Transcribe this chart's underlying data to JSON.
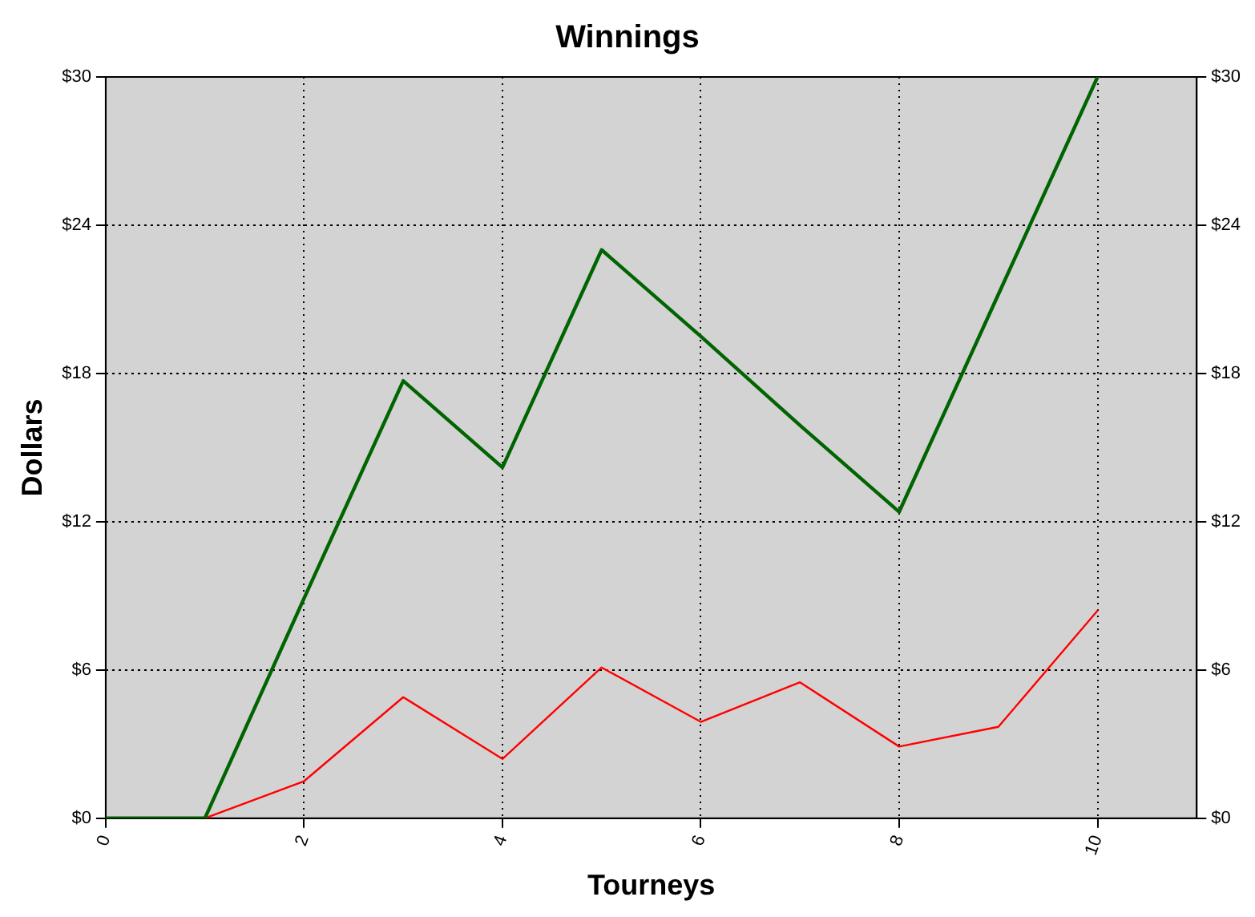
{
  "chart_data": {
    "type": "line",
    "title": "Winnings",
    "xlabel": "Tourneys",
    "ylabel": "Dollars",
    "x": [
      0,
      1,
      2,
      3,
      4,
      5,
      6,
      7,
      8,
      9,
      10
    ],
    "series": [
      {
        "color": "#006400",
        "values": [
          0,
          0,
          8.9,
          17.7,
          14.2,
          23.0,
          19.5,
          15.9,
          12.4,
          21.2,
          30.0
        ]
      },
      {
        "color": "#ff0000",
        "values": [
          null,
          0,
          1.5,
          4.9,
          2.4,
          6.1,
          3.9,
          5.5,
          2.9,
          3.7,
          8.4
        ]
      }
    ],
    "xlim": [
      0,
      11
    ],
    "xticks": [
      0,
      2,
      4,
      6,
      8,
      10
    ],
    "ylim": [
      0,
      30
    ],
    "yticks": [
      {
        "value": 0,
        "label": "$0"
      },
      {
        "value": 6,
        "label": "$6"
      },
      {
        "value": 12,
        "label": "$12"
      },
      {
        "value": 18,
        "label": "$18"
      },
      {
        "value": 24,
        "label": "$24"
      },
      {
        "value": 30,
        "label": "$30"
      }
    ],
    "y2lim": [
      0,
      30
    ],
    "y2ticks": [
      {
        "value": 0,
        "label": "$0"
      },
      {
        "value": 6,
        "label": "$6"
      },
      {
        "value": 12,
        "label": "$12"
      },
      {
        "value": 18,
        "label": "$18"
      },
      {
        "value": 24,
        "label": "$24"
      },
      {
        "value": 30,
        "label": "$30"
      }
    ],
    "grid": true,
    "legend": false,
    "marker": "none",
    "line_style": "solid"
  }
}
